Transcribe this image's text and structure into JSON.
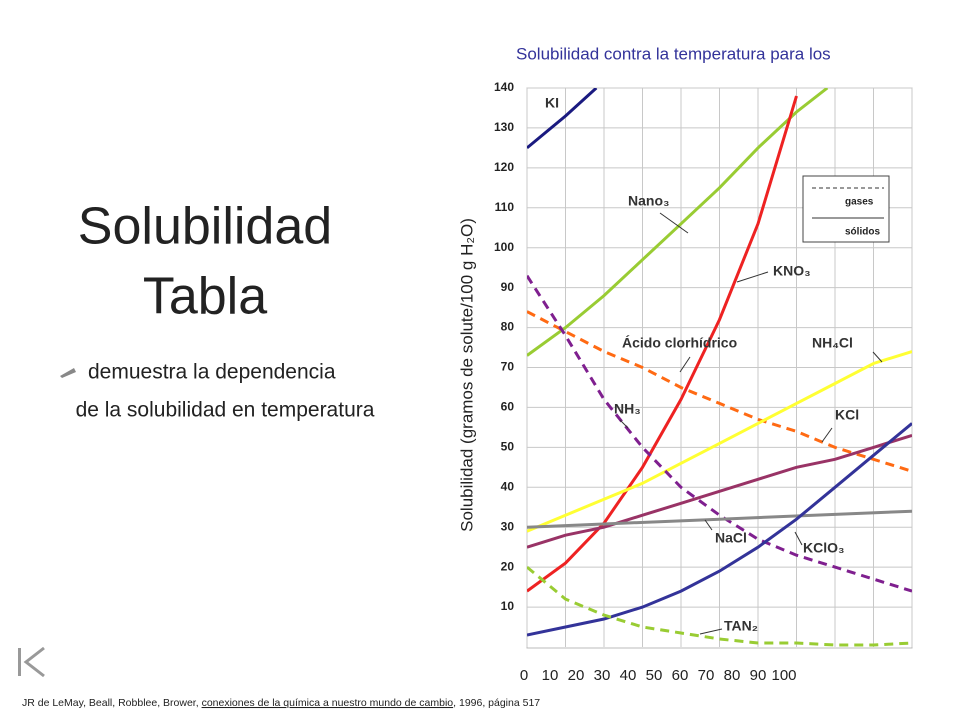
{
  "slide": {
    "title_lines": [
      "Solubilidad",
      "Tabla"
    ],
    "bullet_lines": [
      "demuestra la dependencia",
      "de la solubilidad en temperatura"
    ],
    "citation": {
      "before": "JR de LeMay, Beall, Robblee, Brower, ",
      "link": "conexiones de la química a nuestro mundo de cambio",
      "after": ", 1996, página 517"
    }
  },
  "chart_data": {
    "type": "line",
    "title": "Solubilidad contra la temperatura para los",
    "y_label": "Solubilidad (gramos de solute/100 g H₂O)",
    "xlim": [
      0,
      100
    ],
    "xticks": [
      0,
      10,
      20,
      30,
      40,
      50,
      60,
      70,
      80,
      90,
      100
    ],
    "ylim": [
      0,
      140
    ],
    "yticks": [
      10,
      20,
      30,
      40,
      50,
      60,
      70,
      80,
      90,
      100,
      110,
      120,
      130,
      140
    ],
    "grid": true,
    "style_legend": [
      {
        "label": "gases",
        "dashed": true
      },
      {
        "label": "sólidos",
        "dashed": false
      }
    ],
    "series": [
      {
        "name": "KI",
        "color": "#1a1a80",
        "dashed": false,
        "x": [
          0,
          10,
          18
        ],
        "values": [
          125,
          133,
          140
        ]
      },
      {
        "name": "Nano₃",
        "color": "#99cc33",
        "dashed": false,
        "x": [
          0,
          10,
          20,
          30,
          40,
          50,
          60,
          70,
          78
        ],
        "values": [
          73,
          80,
          88,
          97,
          106,
          115,
          125,
          134,
          140
        ]
      },
      {
        "name": "KNO₃",
        "color": "#ee2222",
        "dashed": false,
        "x": [
          0,
          10,
          20,
          30,
          40,
          50,
          60,
          70
        ],
        "values": [
          14,
          21,
          31,
          45,
          62,
          82,
          106,
          138
        ]
      },
      {
        "name": "Ácido clorhídrico",
        "color": "#ff6a13",
        "dashed": true,
        "x": [
          0,
          10,
          20,
          30,
          40,
          50,
          60,
          70,
          80,
          90,
          100
        ],
        "values": [
          84,
          79,
          74,
          70,
          65,
          61,
          57,
          54,
          50,
          47,
          44
        ]
      },
      {
        "name": "NH₄Cl",
        "color": "#ffff33",
        "dashed": false,
        "x": [
          0,
          10,
          20,
          30,
          40,
          50,
          60,
          70,
          80,
          90,
          100
        ],
        "values": [
          29,
          33,
          37,
          41,
          46,
          51,
          56,
          61,
          66,
          71,
          74
        ]
      },
      {
        "name": "NH₃",
        "color": "#7f1f8f",
        "dashed": true,
        "x": [
          0,
          10,
          20,
          30,
          40,
          50,
          60,
          70,
          80,
          90,
          100
        ],
        "values": [
          93,
          78,
          62,
          50,
          40,
          33,
          27,
          23,
          20,
          17,
          14
        ]
      },
      {
        "name": "KCl",
        "color": "#993366",
        "dashed": false,
        "x": [
          0,
          10,
          20,
          30,
          40,
          50,
          60,
          70,
          80,
          90,
          100
        ],
        "values": [
          25,
          28,
          30,
          33,
          36,
          39,
          42,
          45,
          47,
          50,
          53
        ]
      },
      {
        "name": "NaCl",
        "color": "#888888",
        "dashed": false,
        "x": [
          0,
          50,
          100
        ],
        "values": [
          30,
          32,
          34
        ]
      },
      {
        "name": "KClO₃",
        "color": "#333399",
        "dashed": false,
        "x": [
          0,
          10,
          20,
          30,
          40,
          50,
          60,
          70,
          80,
          90,
          100
        ],
        "values": [
          3,
          5,
          7,
          10,
          14,
          19,
          25,
          32,
          40,
          48,
          56
        ]
      },
      {
        "name": "TAN₂",
        "color": "#99cc33",
        "dashed": true,
        "x": [
          0,
          10,
          20,
          30,
          40,
          50,
          60,
          70,
          80,
          90,
          100
        ],
        "values": [
          20,
          12,
          8,
          5,
          3.5,
          2,
          1,
          1,
          0.5,
          0.5,
          1
        ]
      }
    ]
  }
}
